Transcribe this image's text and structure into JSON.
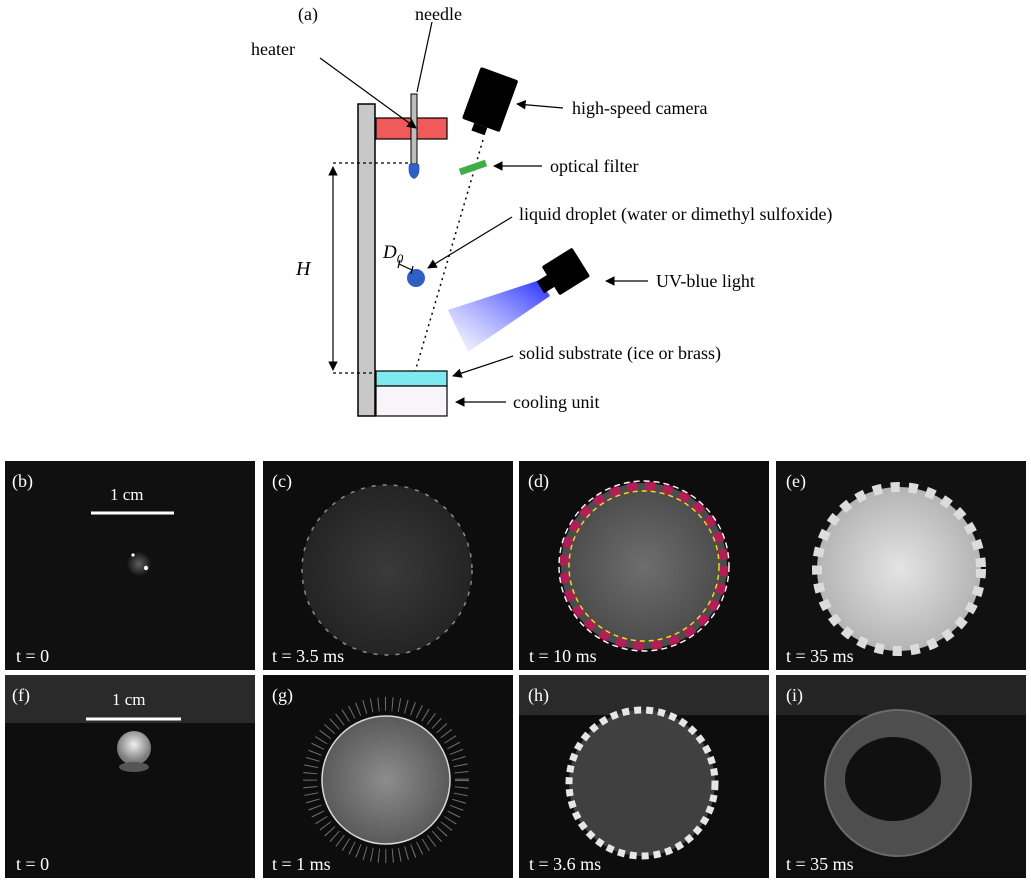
{
  "schematic": {
    "panel_label": "(a)",
    "labels": {
      "needle": "needle",
      "heater": "heater",
      "camera": "high-speed camera",
      "filter": "optical filter",
      "droplet": "liquid droplet (water or dimethyl sulfoxide)",
      "light": "UV-blue light",
      "substrate": "solid substrate (ice or brass)",
      "cooling": "cooling unit"
    },
    "height_symbol": "H",
    "diameter_symbol": "D",
    "diameter_subscript": "0"
  },
  "photo_panels": [
    {
      "label": "(b)",
      "time": "t = 0",
      "scale_bar": "1 cm"
    },
    {
      "label": "(c)",
      "time": "t = 3.5 ms"
    },
    {
      "label": "(d)",
      "time": "t = 10 ms"
    },
    {
      "label": "(e)",
      "time": "t = 35 ms"
    },
    {
      "label": "(f)",
      "time": "t = 0",
      "scale_bar": "1 cm"
    },
    {
      "label": "(g)",
      "time": "t = 1 ms"
    },
    {
      "label": "(h)",
      "time": "t = 3.6 ms"
    },
    {
      "label": "(i)",
      "time": "t = 35 ms"
    }
  ],
  "colors": {
    "heater": "#f15a5a",
    "droplet": "#2f5fc4",
    "filter": "#3fae49",
    "substrate": "#7fe9f2",
    "contour_outer": "#ffffff",
    "contour_inner": "#f3e21a",
    "finger_fill": "#c2185b"
  }
}
